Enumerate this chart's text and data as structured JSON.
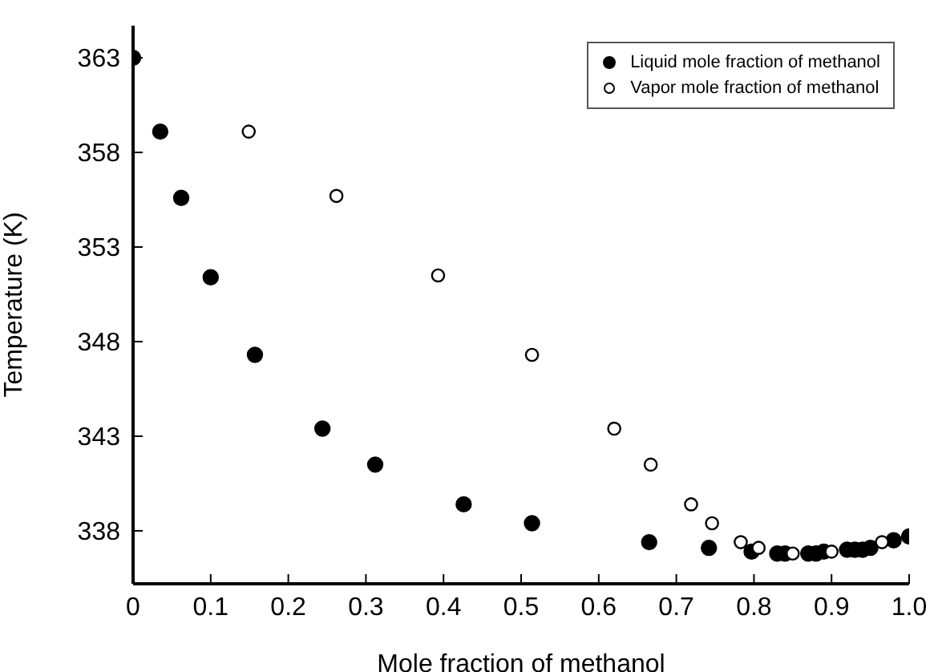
{
  "chart_data": {
    "type": "scatter",
    "xlabel": "Mole fraction of methanol",
    "ylabel": "Temperature (K)",
    "xlim": [
      0,
      1
    ],
    "ylim": [
      335.2,
      364.7
    ],
    "xticks": [
      0,
      0.1,
      0.2,
      0.3,
      0.4,
      0.5,
      0.6,
      0.7,
      0.8,
      0.9,
      {
        "value": 1,
        "label": "1.0"
      }
    ],
    "yticks": [
      338,
      343,
      348,
      353,
      358,
      363
    ],
    "marker": "circle",
    "legend": "top right",
    "series": [
      {
        "name": "Liquid mole fraction of methanol",
        "color": "#000000",
        "x": [
          0,
          0.035,
          0.062,
          0.1,
          0.157,
          0.244,
          0.312,
          0.426,
          0.514,
          0.665,
          0.742,
          0.797,
          0.83,
          0.84,
          0.87,
          0.88,
          0.89,
          0.92,
          0.93,
          0.94,
          0.95,
          0.98,
          1.0
        ],
        "values": [
          363,
          359.1,
          355.6,
          351.4,
          347.3,
          343.4,
          341.5,
          339.4,
          338.4,
          337.4,
          337.1,
          336.9,
          336.8,
          336.8,
          336.8,
          336.8,
          336.9,
          337,
          337,
          337,
          337.1,
          337.5,
          337.7
        ]
      },
      {
        "name": "Vapor mole fraction of methanol",
        "color": "#000000",
        "x": [
          0.149,
          0.262,
          0.393,
          0.514,
          0.62,
          0.667,
          0.719,
          0.746,
          0.783,
          0.806,
          0.85,
          0.9,
          0.965
        ],
        "values": [
          359.1,
          355.7,
          351.5,
          347.3,
          343.4,
          341.5,
          339.4,
          338.4,
          337.4,
          337.1,
          336.8,
          336.9,
          337.4
        ]
      }
    ]
  }
}
